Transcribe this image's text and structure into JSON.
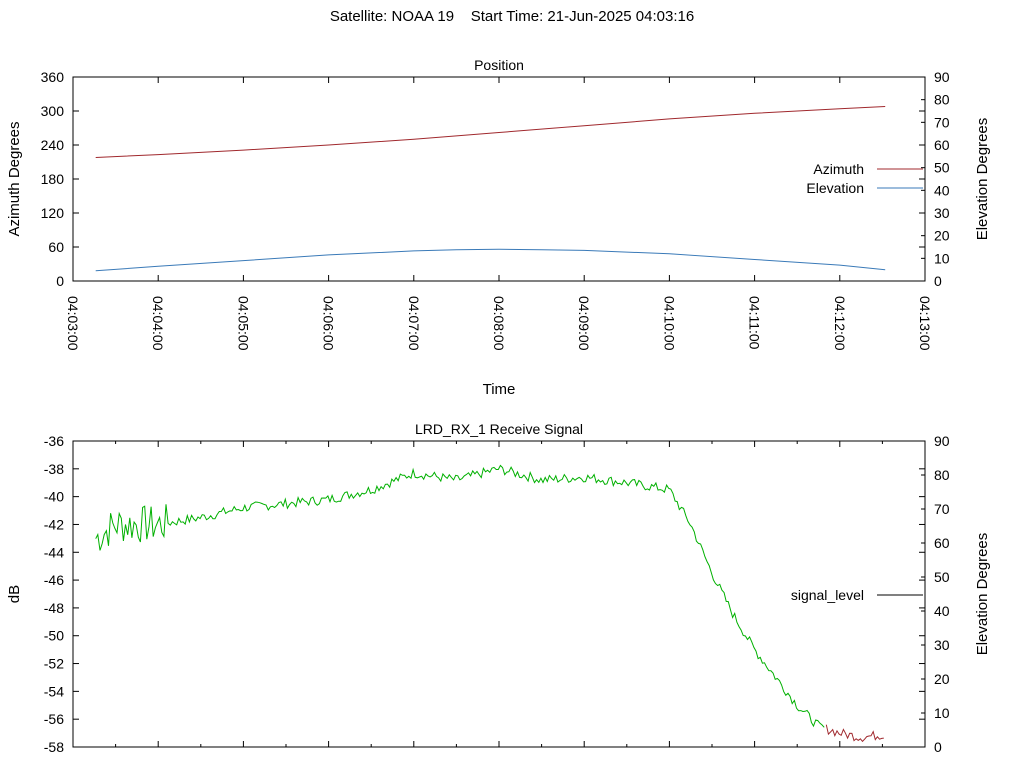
{
  "header": {
    "title": "Satellite: NOAA 19    Start Time: 21-Jun-2025 04:03:16"
  },
  "chart_data": [
    {
      "type": "line",
      "title": "Position",
      "xlabel": "Time",
      "ylabel": "Azimuth Degrees",
      "y2label": "Elevation Degrees",
      "xlim": [
        "04:03:00",
        "04:13:00"
      ],
      "ylim": [
        0,
        360
      ],
      "y2lim": [
        0,
        90
      ],
      "xticks": [
        "04:03:00",
        "04:04:00",
        "04:05:00",
        "04:06:00",
        "04:07:00",
        "04:08:00",
        "04:09:00",
        "04:10:00",
        "04:11:00",
        "04:12:00",
        "04:13:00"
      ],
      "yticks": [
        "0",
        "60",
        "120",
        "180",
        "240",
        "300",
        "360"
      ],
      "y2ticks": [
        "0",
        "10",
        "20",
        "30",
        "40",
        "50",
        "60",
        "70",
        "80",
        "90"
      ],
      "legend_position": "right",
      "grid": false,
      "series": [
        {
          "name": "Azimuth",
          "axis": "left",
          "color": "#a0282d",
          "x": [
            "04:03:16",
            "04:04:00",
            "04:05:00",
            "04:06:00",
            "04:07:00",
            "04:08:00",
            "04:09:00",
            "04:10:00",
            "04:11:00",
            "04:12:00",
            "04:12:32"
          ],
          "values": [
            218,
            223,
            231,
            240,
            250,
            262,
            274,
            286,
            296,
            304,
            308
          ]
        },
        {
          "name": "Elevation",
          "axis": "right",
          "color": "#3a7ab8",
          "x": [
            "04:03:16",
            "04:04:00",
            "04:05:00",
            "04:06:00",
            "04:07:00",
            "04:07:30",
            "04:08:00",
            "04:08:30",
            "04:09:00",
            "04:10:00",
            "04:11:00",
            "04:12:00",
            "04:12:32"
          ],
          "values": [
            4.5,
            6.5,
            9,
            11.5,
            13.3,
            13.8,
            14,
            13.8,
            13.5,
            12,
            9.5,
            7,
            5
          ]
        }
      ]
    },
    {
      "type": "line",
      "title": "LRD_RX_1 Receive Signal",
      "xlabel": "",
      "ylabel": "dB",
      "y2label": "Elevation Degrees",
      "xlim": [
        "04:03:00",
        "04:13:00"
      ],
      "ylim": [
        -58,
        -36
      ],
      "y2lim": [
        0,
        90
      ],
      "yticks": [
        "-58",
        "-56",
        "-54",
        "-52",
        "-50",
        "-48",
        "-46",
        "-44",
        "-42",
        "-40",
        "-38",
        "-36"
      ],
      "y2ticks": [
        "0",
        "10",
        "20",
        "30",
        "40",
        "50",
        "60",
        "70",
        "80",
        "90"
      ],
      "legend_position": "right",
      "grid": false,
      "series": [
        {
          "name": "signal_level",
          "axis": "left",
          "color": "#00b000",
          "color_low": "#a0282d",
          "x": [
            "04:03:16",
            "04:03:30",
            "04:04:00",
            "04:04:30",
            "04:05:00",
            "04:05:30",
            "04:06:00",
            "04:06:30",
            "04:07:00",
            "04:07:30",
            "04:08:00",
            "04:08:30",
            "04:09:00",
            "04:09:30",
            "04:10:00",
            "04:10:15",
            "04:10:30",
            "04:10:45",
            "04:11:00",
            "04:11:15",
            "04:11:30",
            "04:11:45",
            "04:12:00",
            "04:12:15",
            "04:12:32"
          ],
          "values": [
            -43,
            -42,
            -42,
            -41.5,
            -40.8,
            -40.5,
            -40.2,
            -39.5,
            -38.3,
            -38.8,
            -38.0,
            -38.8,
            -38.6,
            -39.0,
            -39.5,
            -42.0,
            -45.5,
            -48.5,
            -51.0,
            -53.0,
            -55.0,
            -56.5,
            -57.0,
            -57.3,
            -57.1
          ]
        }
      ]
    }
  ]
}
